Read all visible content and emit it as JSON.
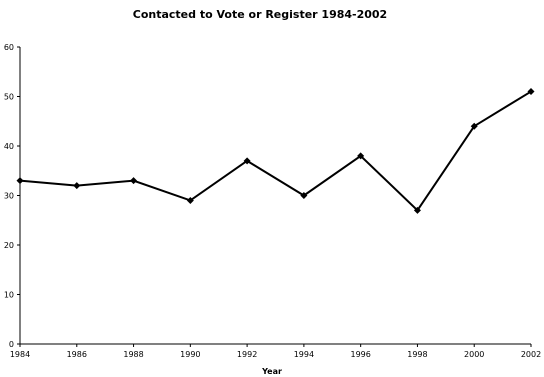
{
  "chart_data": {
    "type": "line",
    "title": "Contacted to Vote or Register 1984-2002",
    "xlabel": "Year",
    "ylabel": "",
    "x": [
      "1984",
      "1986",
      "1988",
      "1990",
      "1992",
      "1994",
      "1996",
      "1998",
      "2000",
      "2002"
    ],
    "series": [
      {
        "values": [
          33,
          32,
          33,
          29,
          37,
          30,
          38,
          27,
          44,
          51
        ]
      }
    ],
    "ylim": [
      0,
      60
    ],
    "yticks": [
      0,
      10,
      20,
      30,
      40,
      50,
      60
    ],
    "grid": false,
    "legend": "none",
    "colors": {
      "line": "#000000",
      "marker": "#000000",
      "background": "#ffffff"
    }
  }
}
